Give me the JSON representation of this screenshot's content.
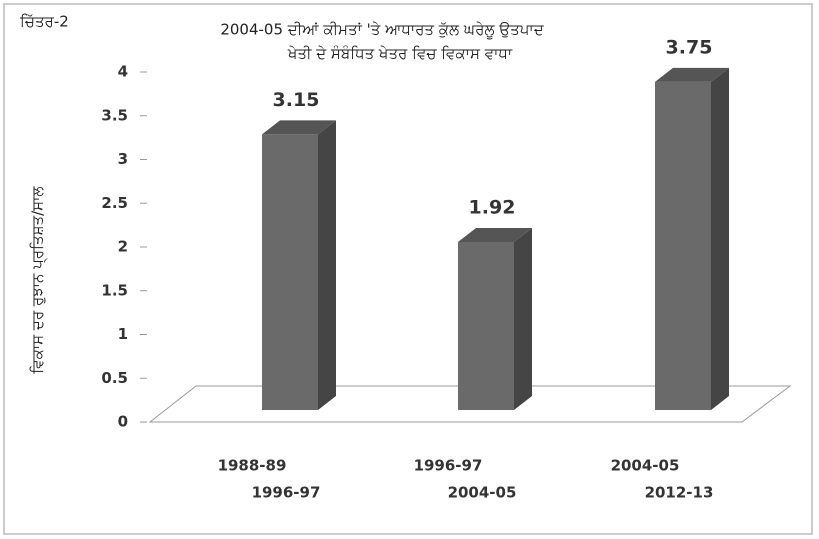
{
  "chart_data": {
    "type": "bar3d",
    "figure_label": "ਚਿੱਤਰ-2",
    "title": "2004-05 ਦੀਆਂ ਕੀਮਤਾਂ 'ਤੇ ਆਧਾਰਤ ਕੁੱਲ ਘਰੇਲੂ ਉਤਪਾਦ",
    "subtitle": "ਖੇਤੀ ਦੇ ਸੰਬੰਧਿਤ ਖੇਤਰ ਵਿਚ ਵਿਕਾਸ ਵਾਧਾ",
    "y_label": "ਵਿਕਾਸ ਦਰ ਰੁਝਾਨ ਪ੍ਰਤਿਸ਼ਤ/ਸਾਲ",
    "categories": [
      [
        "1988-89",
        "1996-97"
      ],
      [
        "1996-97",
        "2004-05"
      ],
      [
        "2004-05",
        "2012-13"
      ]
    ],
    "values": [
      3.15,
      1.92,
      3.75
    ],
    "color": "#6a6a6a",
    "ylim": [
      0,
      4
    ],
    "yticks": [
      0,
      0.5,
      1,
      1.5,
      2,
      2.5,
      3,
      3.5,
      4
    ],
    "grid": false
  }
}
